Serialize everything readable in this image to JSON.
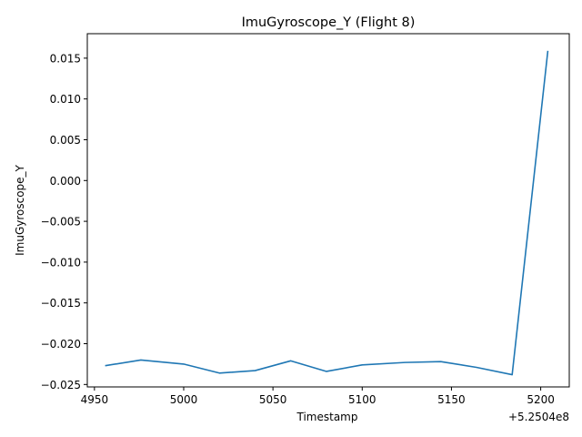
{
  "chart_data": {
    "type": "line",
    "title": "ImuGyroscope_Y (Flight 8)",
    "xlabel": "Timestamp",
    "ylabel": "ImuGyroscope_Y",
    "x_offset_label": "+5.2504e8",
    "xlim": [
      4946,
      5216
    ],
    "ylim": [
      -0.0253,
      0.018
    ],
    "x_ticks": [
      4950,
      5000,
      5050,
      5100,
      5150,
      5200
    ],
    "x_tick_labels": [
      "4950",
      "5000",
      "5050",
      "5100",
      "5150",
      "5200"
    ],
    "y_ticks": [
      -0.025,
      -0.02,
      -0.015,
      -0.01,
      -0.005,
      0.0,
      0.005,
      0.01,
      0.015
    ],
    "y_tick_labels": [
      "−0.025",
      "−0.020",
      "−0.015",
      "−0.010",
      "−0.005",
      "0.000",
      "0.005",
      "0.010",
      "0.015"
    ],
    "grid": false,
    "series": [
      {
        "color": "#1f77b4",
        "x": [
          4956,
          4976,
          5000,
          5020,
          5040,
          5060,
          5080,
          5100,
          5124,
          5144,
          5164,
          5184,
          5204
        ],
        "y": [
          -0.0227,
          -0.022,
          -0.0225,
          -0.0236,
          -0.0233,
          -0.0221,
          -0.0234,
          -0.0226,
          -0.0223,
          -0.0222,
          -0.0229,
          -0.0238,
          0.0159
        ]
      }
    ]
  }
}
